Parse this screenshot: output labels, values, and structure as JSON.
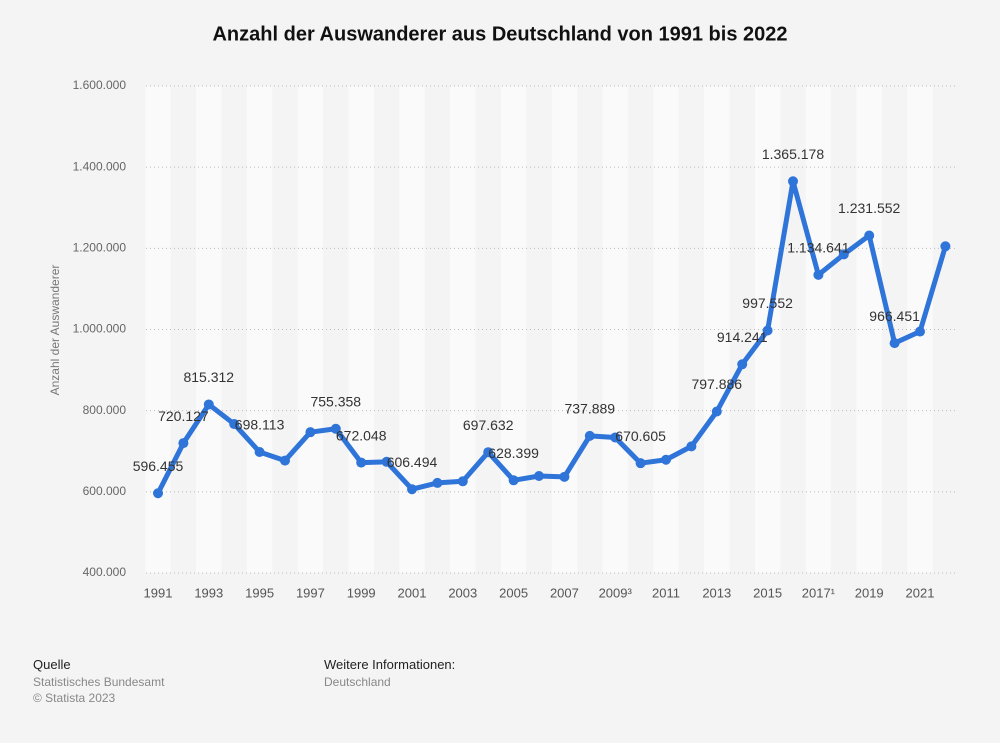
{
  "chart_data": {
    "type": "line",
    "title": "Anzahl der Auswanderer aus Deutschland von 1991 bis 2022",
    "y_label": "Anzahl der Auswanderer",
    "categories": [
      "1991",
      null,
      "1993",
      null,
      "1995",
      null,
      "1997",
      null,
      "1999",
      null,
      "2001",
      null,
      "2003",
      null,
      "2005",
      null,
      "2007",
      null,
      "2009³",
      null,
      "2011",
      null,
      "2013",
      null,
      "2015",
      null,
      "2017¹",
      null,
      "2019",
      null,
      "2021",
      null
    ],
    "series": [
      {
        "name": "Anzahl der Auswanderer",
        "color": "#2f74d8",
        "values": [
          596455,
          720127,
          815312,
          767000,
          698113,
          677000,
          747000,
          755358,
          672048,
          674000,
          606494,
          622000,
          626000,
          697632,
          628399,
          639000,
          637000,
          737889,
          734000,
          670605,
          679000,
          712000,
          797886,
          914241,
          997552,
          1365178,
          1134641,
          1185000,
          1231552,
          966451,
          995000,
          1205000
        ],
        "value_labels": [
          "596.455",
          "720.127",
          "815.312",
          null,
          "698.113",
          null,
          null,
          "755.358",
          "672.048",
          null,
          "606.494",
          null,
          null,
          "697.632",
          "628.399",
          null,
          null,
          "737.889",
          null,
          "670.605",
          null,
          null,
          "797.886",
          "914.241",
          "997.552",
          "1.365.178",
          "1.134.641",
          null,
          "1.231.552",
          "966.451",
          null,
          null
        ]
      }
    ],
    "ylim": [
      400000,
      1600000
    ],
    "yticks": [
      {
        "value": 400000,
        "label": "400.000"
      },
      {
        "value": 600000,
        "label": "600.000"
      },
      {
        "value": 800000,
        "label": "800.000"
      },
      {
        "value": 1000000,
        "label": "1.000.000"
      },
      {
        "value": 1200000,
        "label": "1.200.000"
      },
      {
        "value": 1400000,
        "label": "1.400.000"
      },
      {
        "value": 1600000,
        "label": "1.600.000"
      }
    ],
    "grid": true
  },
  "footer": {
    "source_title": "Quelle",
    "source": "Statistisches Bundesamt",
    "copyright": "© Statista 2023",
    "info_title": "Weitere Informationen:",
    "info": "Deutschland"
  }
}
